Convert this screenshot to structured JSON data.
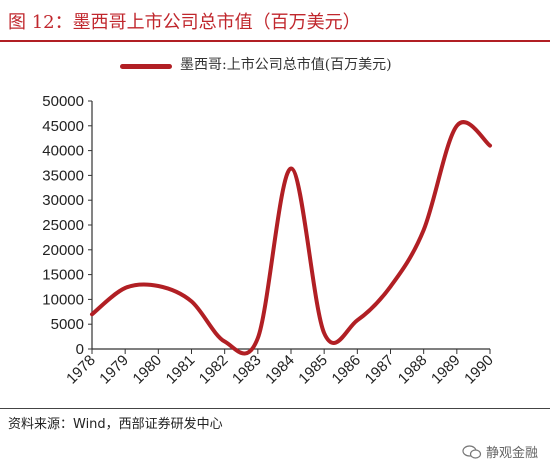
{
  "header": {
    "title": "图 12：墨西哥上市公司总市值（百万美元）"
  },
  "source": {
    "text": "资料来源：Wind，西部证券研发中心"
  },
  "watermark": {
    "text": "静观金融",
    "icon": "wechat-icon"
  },
  "colors": {
    "series": "#b11f24",
    "title": "#c0272d"
  },
  "chart_data": {
    "type": "line",
    "title": "",
    "xlabel": "",
    "ylabel": "",
    "ylim": [
      0,
      50000
    ],
    "yticks": [
      0,
      5000,
      10000,
      15000,
      20000,
      25000,
      30000,
      35000,
      40000,
      45000,
      50000
    ],
    "categories": [
      "1978",
      "1979",
      "1980",
      "1981",
      "1982",
      "1983",
      "1984",
      "1985",
      "1986",
      "1987",
      "1988",
      "1989",
      "1990"
    ],
    "legend_position": "top",
    "grid": false,
    "smooth": true,
    "series": [
      {
        "name": "墨西哥:上市公司总市值(百万美元)",
        "values": [
          7000,
          12300,
          12700,
          9600,
          1500,
          2200,
          36400,
          3200,
          5800,
          12600,
          24000,
          45000,
          41000
        ]
      }
    ]
  }
}
